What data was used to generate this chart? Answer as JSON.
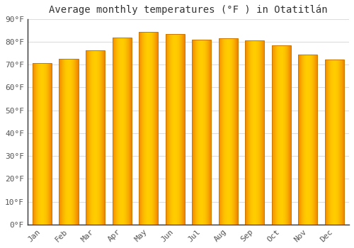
{
  "title": "Average monthly temperatures (°F ) in Otatitlán",
  "months": [
    "Jan",
    "Feb",
    "Mar",
    "Apr",
    "May",
    "Jun",
    "Jul",
    "Aug",
    "Sep",
    "Oct",
    "Nov",
    "Dec"
  ],
  "values": [
    70.7,
    72.7,
    76.3,
    82.0,
    84.2,
    83.5,
    80.8,
    81.6,
    80.6,
    78.6,
    74.5,
    72.1
  ],
  "bar_color_main": "#FFA500",
  "bar_color_edge": "#CC7700",
  "bar_color_light": "#FFD966",
  "ylim": [
    0,
    90
  ],
  "yticks": [
    0,
    10,
    20,
    30,
    40,
    50,
    60,
    70,
    80,
    90
  ],
  "ytick_labels": [
    "0°F",
    "10°F",
    "20°F",
    "30°F",
    "40°F",
    "50°F",
    "60°F",
    "70°F",
    "80°F",
    "90°F"
  ],
  "background_color": "#ffffff",
  "plot_bg_color": "#ffffff",
  "grid_color": "#dddddd",
  "title_fontsize": 10,
  "tick_fontsize": 8,
  "font_family": "monospace"
}
